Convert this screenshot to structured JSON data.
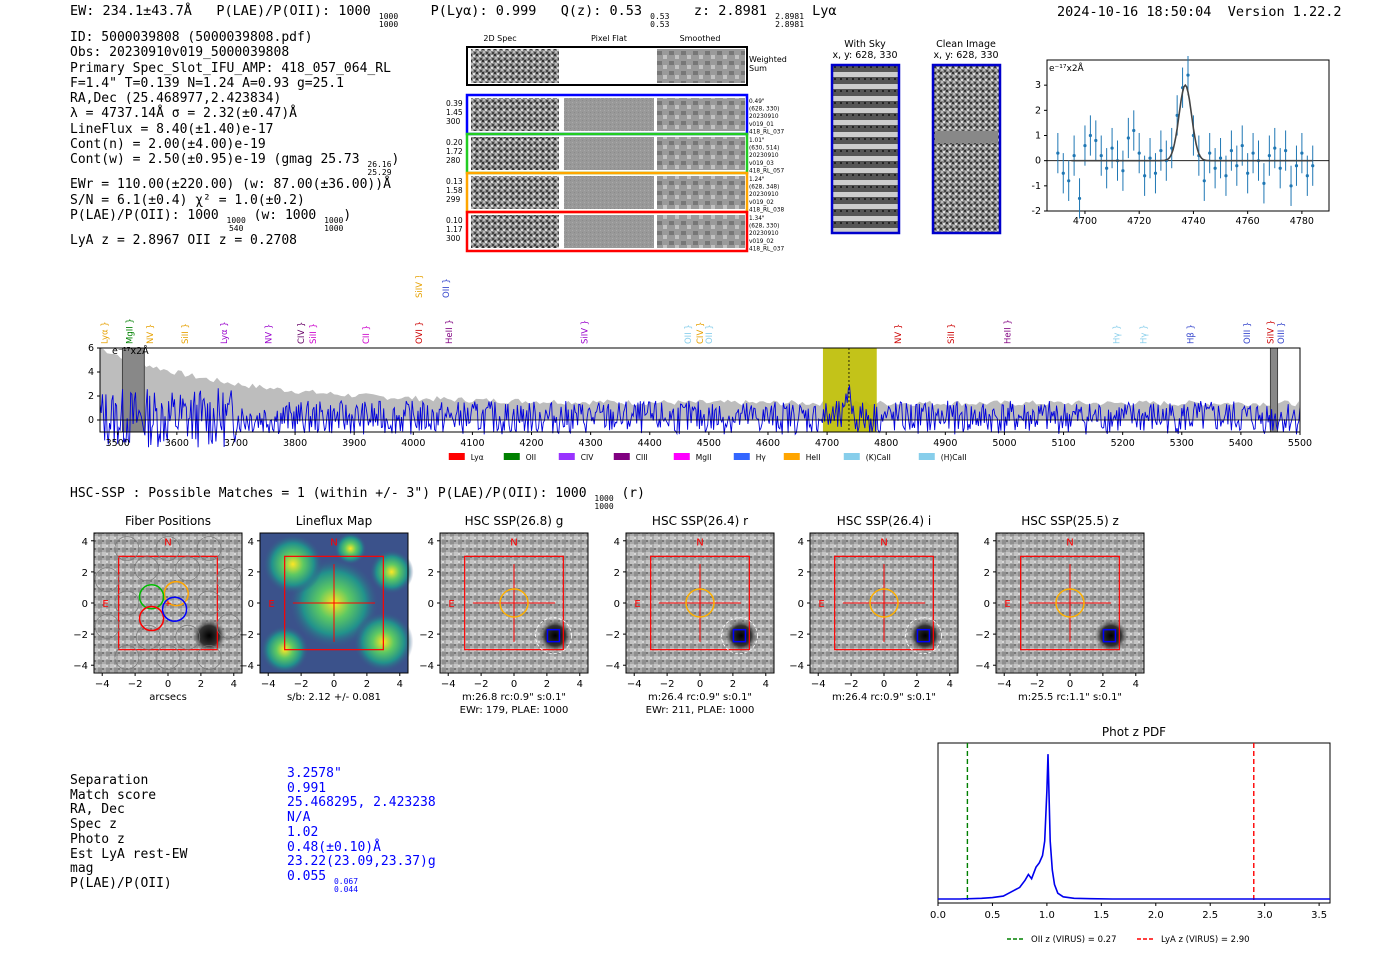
{
  "header": {
    "summary_parts": {
      "ew": "EW: 234.1±43.7Å",
      "plae": "P(LAE)/P(OII): 1000",
      "plae_hi": "1000",
      "plae_lo": "1000",
      "plya": "P(Lyα): 0.999",
      "qz": "Q(z): 0.53",
      "qz_hi": "0.53",
      "qz_lo": "0.53",
      "z": "z: 2.8981",
      "z_hi": "2.8981",
      "z_lo": "2.8981",
      "line": "Lyα"
    },
    "timestamp": "2024-10-16 18:50:04",
    "version": "Version 1.22.2"
  },
  "info": {
    "id": "ID: 5000039808 (5000039808.pdf)",
    "obs": "Obs: 20230910v019_5000039808",
    "primary": "Primary Spec_Slot_IFU_AMP: 418_057_064_RL",
    "params": "F=1.4\"  T=0.139  N=1.24  A=0.93  g=25.1",
    "radec": "RA,Dec (25.468977,2.423834)",
    "lambda": "λ = 4737.14Å  σ = 2.32(±0.47)Å",
    "lineflux": "LineFlux = 8.40(±1.40)e-17",
    "contn": "Cont(n) = 2.00(±4.00)e-19",
    "contw": "Cont(w) = 2.50(±0.95)e-19 (gmag 25.73",
    "gmag_hi": "26.16",
    "gmag_lo": "25.29",
    "contw_end": ")",
    "ewr": "EWr = 110.00(±220.00) (w: 87.00(±36.00))Å",
    "sn": "S/N = 6.1(±0.4)  χ² = 1.0(±0.2)",
    "plae": "P(LAE)/P(OII): 1000",
    "plae_hi": "1000",
    "plae_lo": "540",
    "plae_w": " (w: 1000",
    "plae_w_hi": "1000",
    "plae_w_lo": "1000",
    "plae_end": ")",
    "lyaz": "LyA z = 2.8967  OII z = 0.2708"
  },
  "cutouts": {
    "col_headers": [
      "2D Spec",
      "Pixel Flat",
      "Smoothed"
    ],
    "weighted_sum": "Weighted Sum",
    "rows": [
      {
        "left": [
          "0.39",
          "1.45",
          "300"
        ],
        "right": [
          "0.49\"",
          "(628, 330)",
          "20230910",
          "v019_01",
          "418_RL_037"
        ],
        "color": "#0000ff"
      },
      {
        "left": [
          "0.20",
          "1.72",
          "280"
        ],
        "right": [
          "1.01\"",
          "(630, 514)",
          "20230910",
          "v019_03",
          "418_RL_057"
        ],
        "color": "#22cc22"
      },
      {
        "left": [
          "0.13",
          "1.58",
          "299"
        ],
        "right": [
          "1.24\"",
          "(628, 348)",
          "20230910",
          "v019_02",
          "418_RL_038"
        ],
        "color": "#ffa500"
      },
      {
        "left": [
          "0.10",
          "1.17",
          "300"
        ],
        "right": [
          "1.34\"",
          "(628, 330)",
          "20230910",
          "v019_02",
          "418_RL_037"
        ],
        "color": "#ff0000"
      }
    ],
    "with_sky_title": "With Sky",
    "with_sky_xy": "x, y: 628, 330",
    "clean_title": "Clean Image",
    "clean_xy": "x, y: 628, 330"
  },
  "chart_data": [
    {
      "type": "line",
      "name": "zoom-spectrum",
      "ylabel_note": "e⁻¹⁷x2Å",
      "xlim": [
        4686,
        4790
      ],
      "ylim": [
        -2,
        4
      ],
      "xticks": [
        4700,
        4720,
        4740,
        4760,
        4780
      ],
      "yticks": [
        -2,
        -1,
        0,
        1,
        2,
        3
      ],
      "x": [
        4690,
        4692,
        4694,
        4696,
        4698,
        4700,
        4702,
        4704,
        4706,
        4708,
        4710,
        4712,
        4714,
        4716,
        4718,
        4720,
        4722,
        4724,
        4726,
        4728,
        4730,
        4732,
        4734,
        4736,
        4738,
        4740,
        4742,
        4744,
        4746,
        4748,
        4750,
        4752,
        4754,
        4756,
        4758,
        4760,
        4762,
        4764,
        4766,
        4768,
        4770,
        4772,
        4774,
        4776,
        4778,
        4780,
        4782,
        4784
      ],
      "y": [
        0.3,
        -0.5,
        -0.8,
        0.2,
        -1.5,
        0.6,
        1.0,
        0.8,
        0.2,
        -0.3,
        0.5,
        0.0,
        -0.4,
        0.9,
        1.2,
        0.3,
        -0.6,
        0.1,
        -0.5,
        0.4,
        0.0,
        0.5,
        1.8,
        2.9,
        3.4,
        1.0,
        0.2,
        -0.8,
        0.3,
        -0.3,
        0.1,
        -0.6,
        0.4,
        -0.2,
        0.6,
        -0.5,
        0.3,
        0.0,
        -0.9,
        0.2,
        0.5,
        -0.3,
        0.4,
        -1.0,
        -0.2,
        0.3,
        -0.6,
        -0.2
      ],
      "yerr": 0.8,
      "model_peak": {
        "center": 4737,
        "amp": 3.0,
        "sigma": 2.3
      }
    },
    {
      "type": "line",
      "name": "full-spectrum",
      "ylabel_note": "e⁻¹⁷x2Å",
      "xlim": [
        3470,
        5500
      ],
      "ylim": [
        -1,
        6
      ],
      "xticks": [
        3500,
        3600,
        3700,
        3800,
        3900,
        4000,
        4100,
        4200,
        4300,
        4400,
        4500,
        4600,
        4700,
        4800,
        4900,
        5000,
        5100,
        5200,
        5300,
        5400,
        5500
      ],
      "yticks": [
        0,
        2,
        4,
        6
      ],
      "highlight_range": [
        4693,
        4784
      ],
      "line_center": 4737,
      "masked_ranges": [
        [
          3508,
          3545
        ],
        [
          5450,
          5462
        ]
      ],
      "line_marks": [
        {
          "label": "Lyα",
          "x": 3478,
          "color": "#e6a000",
          "row": "low"
        },
        {
          "label": "MgII",
          "x": 3520,
          "color": "#008000",
          "row": "low"
        },
        {
          "label": "NV",
          "x": 3555,
          "color": "#e6a000",
          "row": "low"
        },
        {
          "label": "SiII",
          "x": 3614,
          "color": "#e6a000",
          "row": "low"
        },
        {
          "label": "Lyα",
          "x": 3680,
          "color": "#9900cc",
          "row": "low"
        },
        {
          "label": "NV",
          "x": 3755,
          "color": "#9900cc",
          "row": "low"
        },
        {
          "label": "CIV",
          "x": 3810,
          "color": "#660066",
          "row": "low"
        },
        {
          "label": "SiII",
          "x": 3830,
          "color": "#cc00cc",
          "row": "low"
        },
        {
          "label": "CII",
          "x": 3920,
          "color": "#cc00cc",
          "row": "low"
        },
        {
          "label": "OVI",
          "x": 4010,
          "color": "#cc0000",
          "row": "low"
        },
        {
          "label": "SiIV",
          "x": 4010,
          "color": "#e6a000",
          "row": "high"
        },
        {
          "label": "HeII",
          "x": 4060,
          "color": "#800080",
          "row": "low"
        },
        {
          "label": "OII",
          "x": 4055,
          "color": "#3344cc",
          "row": "high"
        },
        {
          "label": "SiIV",
          "x": 4290,
          "color": "#9900cc",
          "row": "low"
        },
        {
          "label": "OII",
          "x": 4465,
          "color": "#87ceeb",
          "row": "low"
        },
        {
          "label": "CIV",
          "x": 4485,
          "color": "#e6a000",
          "row": "low"
        },
        {
          "label": "OII",
          "x": 4500,
          "color": "#87ceeb",
          "row": "low"
        },
        {
          "label": "NV",
          "x": 4820,
          "color": "#cc0000",
          "row": "low"
        },
        {
          "label": "SiII",
          "x": 4910,
          "color": "#cc0000",
          "row": "low"
        },
        {
          "label": "HeII",
          "x": 5005,
          "color": "#800080",
          "row": "low"
        },
        {
          "label": "Hγ",
          "x": 5190,
          "color": "#87ceeb",
          "row": "low"
        },
        {
          "label": "Hγ",
          "x": 5235,
          "color": "#87ceeb",
          "row": "low"
        },
        {
          "label": "Hβ",
          "x": 5315,
          "color": "#3344cc",
          "row": "low"
        },
        {
          "label": "OIII",
          "x": 5410,
          "color": "#3344cc",
          "row": "low"
        },
        {
          "label": "SiIV",
          "x": 5450,
          "color": "#cc0000",
          "row": "low"
        },
        {
          "label": "OIII",
          "x": 5468,
          "color": "#3344cc",
          "row": "low"
        }
      ],
      "legend": [
        {
          "label": "Lyα",
          "color": "#ff0000"
        },
        {
          "label": "OII",
          "color": "#008000"
        },
        {
          "label": "CIV",
          "color": "#9933ff"
        },
        {
          "label": "CIII",
          "color": "#800080"
        },
        {
          "label": "MgII",
          "color": "#ff00ff"
        },
        {
          "label": "Hγ",
          "color": "#3366ff"
        },
        {
          "label": "HeII",
          "color": "#ffa500"
        },
        {
          "label": "(K)CaII",
          "color": "#87ceeb"
        },
        {
          "label": "(H)CaII",
          "color": "#87ceeb"
        }
      ]
    },
    {
      "type": "line",
      "name": "photz-pdf",
      "title": "Phot z PDF",
      "xlim": [
        0,
        3.6
      ],
      "ylim": [
        0,
        1.05
      ],
      "xticks": [
        0.0,
        0.5,
        1.0,
        1.5,
        2.0,
        2.5,
        3.0,
        3.5
      ],
      "x": [
        0,
        0.2,
        0.4,
        0.5,
        0.6,
        0.65,
        0.7,
        0.75,
        0.8,
        0.83,
        0.86,
        0.9,
        0.93,
        0.96,
        0.98,
        1.0,
        1.01,
        1.02,
        1.03,
        1.05,
        1.07,
        1.1,
        1.15,
        1.25,
        1.4,
        1.6,
        2.0,
        3.0,
        3.6
      ],
      "y": [
        0,
        0,
        0.005,
        0.01,
        0.02,
        0.04,
        0.06,
        0.08,
        0.13,
        0.17,
        0.14,
        0.22,
        0.25,
        0.3,
        0.4,
        0.75,
        1.0,
        0.7,
        0.4,
        0.2,
        0.1,
        0.04,
        0.015,
        0.005,
        0.002,
        0,
        0,
        0,
        0
      ],
      "vlines": [
        {
          "x": 0.27,
          "color": "#008000",
          "label": "OII z (VIRUS) = 0.27"
        },
        {
          "x": 2.9,
          "color": "#ff0000",
          "label": "LyA z (VIRUS) = 2.90"
        }
      ]
    }
  ],
  "hsc": {
    "title": "HSC-SSP : Possible Matches = 1 (within +/- 3\")  P(LAE)/P(OII): 1000",
    "title_hi": "1000",
    "title_lo": "1000",
    "title_end": "(r)",
    "panels": [
      {
        "title": "Fiber Positions",
        "caption1": "arcsecs",
        "caption2": "",
        "kind": "fiber"
      },
      {
        "title": "Lineflux Map",
        "caption1": "s/b: 2.12 +/- 0.081",
        "caption2": "",
        "kind": "lineflux"
      },
      {
        "title": "HSC SSP(26.8) g",
        "caption1": "m:26.8 rc:0.9\"  s:0.1\"",
        "caption2": "EWr: 179, PLAE: 1000",
        "kind": "image"
      },
      {
        "title": "HSC SSP(26.4) r",
        "caption1": "m:26.4 rc:0.9\"  s:0.1\"",
        "caption2": "EWr: 211, PLAE: 1000",
        "kind": "image"
      },
      {
        "title": "HSC SSP(26.4) i",
        "caption1": "m:26.4 rc:0.9\"  s:0.1\"",
        "caption2": "",
        "kind": "image"
      },
      {
        "title": "HSC SSP(25.5) z",
        "caption1": "m:25.5 rc:1.1\"  s:0.1\"",
        "caption2": "",
        "kind": "image"
      }
    ],
    "compass_n": "N",
    "compass_e": "E",
    "axis_ticks": [
      "4",
      "2",
      "0",
      "−2",
      "−4"
    ],
    "axis_xticks": [
      "−4",
      "−2",
      "0",
      "2",
      "4"
    ]
  },
  "match": {
    "labels": [
      "Separation",
      "Match score",
      "RA, Dec",
      "Spec z",
      "Photo z",
      "Est LyA rest-EW",
      "mag",
      "P(LAE)/P(OII)"
    ],
    "values": [
      "3.2578\"",
      "0.991",
      "25.468295, 2.423238",
      "N/A",
      "1.02",
      "0.48(±0.10)Å",
      "23.22(23.09,23.37)g",
      "0.055"
    ],
    "plae_hi": "0.067",
    "plae_lo": "0.044"
  }
}
